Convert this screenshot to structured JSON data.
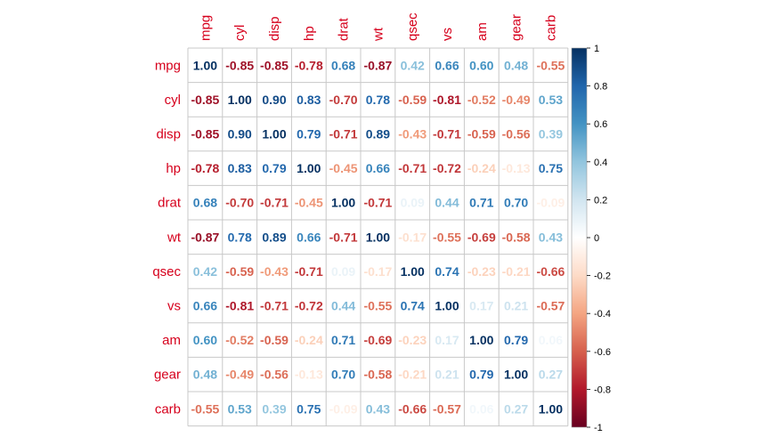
{
  "chart_data": {
    "type": "heatmap",
    "title": "",
    "variables": [
      "mpg",
      "cyl",
      "disp",
      "hp",
      "drat",
      "wt",
      "qsec",
      "vs",
      "am",
      "gear",
      "carb"
    ],
    "label_color": "#d6001c",
    "matrix": [
      [
        1.0,
        -0.85,
        -0.85,
        -0.78,
        0.68,
        -0.87,
        0.42,
        0.66,
        0.6,
        0.48,
        -0.55
      ],
      [
        -0.85,
        1.0,
        0.9,
        0.83,
        -0.7,
        0.78,
        -0.59,
        -0.81,
        -0.52,
        -0.49,
        0.53
      ],
      [
        -0.85,
        0.9,
        1.0,
        0.79,
        -0.71,
        0.89,
        -0.43,
        -0.71,
        -0.59,
        -0.56,
        0.39
      ],
      [
        -0.78,
        0.83,
        0.79,
        1.0,
        -0.45,
        0.66,
        -0.71,
        -0.72,
        -0.24,
        -0.13,
        0.75
      ],
      [
        0.68,
        -0.7,
        -0.71,
        -0.45,
        1.0,
        -0.71,
        0.09,
        0.44,
        0.71,
        0.7,
        -0.09
      ],
      [
        -0.87,
        0.78,
        0.89,
        0.66,
        -0.71,
        1.0,
        -0.17,
        -0.55,
        -0.69,
        -0.58,
        0.43
      ],
      [
        0.42,
        -0.59,
        -0.43,
        -0.71,
        0.09,
        -0.17,
        1.0,
        0.74,
        -0.23,
        -0.21,
        -0.66
      ],
      [
        0.66,
        -0.81,
        -0.71,
        -0.72,
        0.44,
        -0.55,
        0.74,
        1.0,
        0.17,
        0.21,
        -0.57
      ],
      [
        0.6,
        -0.52,
        -0.59,
        -0.24,
        0.71,
        -0.69,
        -0.23,
        0.17,
        1.0,
        0.79,
        0.06
      ],
      [
        0.48,
        -0.49,
        -0.56,
        -0.13,
        0.7,
        -0.58,
        -0.21,
        0.21,
        0.79,
        1.0,
        0.27
      ],
      [
        -0.55,
        0.53,
        0.39,
        0.75,
        -0.09,
        0.43,
        -0.66,
        -0.57,
        0.06,
        0.27,
        1.0
      ]
    ],
    "value_range": [
      -1,
      1
    ],
    "colorbar_ticks": [
      "1",
      "0.8",
      "0.6",
      "0.4",
      "0.2",
      "0",
      "-0.2",
      "-0.4",
      "-0.6",
      "-0.8",
      "-1"
    ],
    "colorscale": [
      "#67001F",
      "#B2182B",
      "#D6604D",
      "#F4A582",
      "#FDDBC7",
      "#FFFFFF",
      "#D1E5F0",
      "#92C5DE",
      "#4393C3",
      "#2166AC",
      "#053061"
    ],
    "grid": true,
    "legend": "colorbar-right"
  }
}
